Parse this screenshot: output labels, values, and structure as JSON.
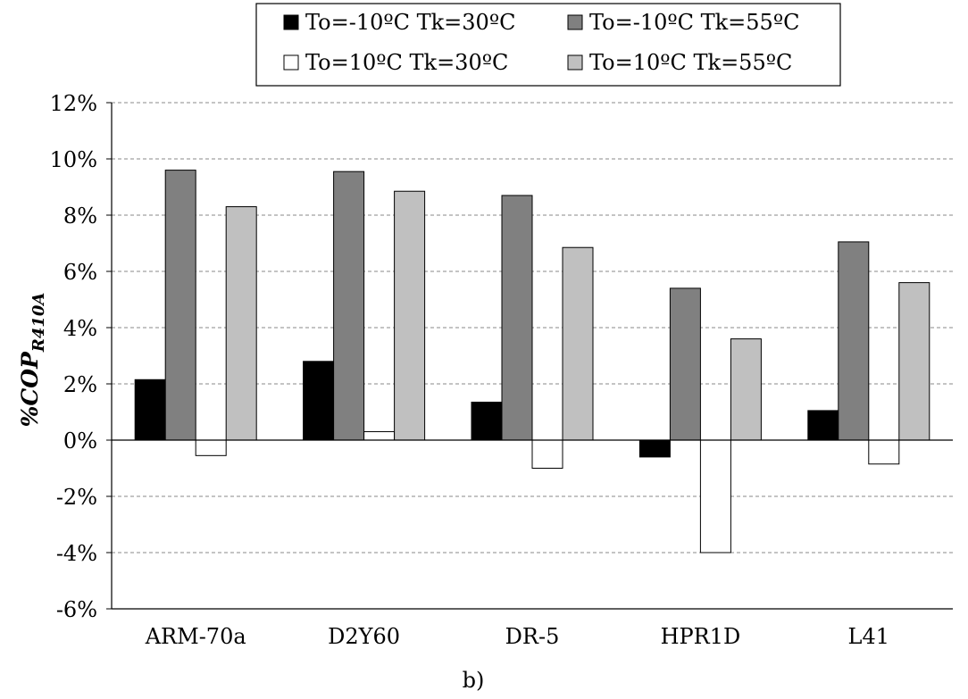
{
  "chart_data": {
    "type": "bar",
    "caption": "b)",
    "ylabel": {
      "main": "%COP",
      "subscript": "R410A"
    },
    "categories": [
      "ARM-70a",
      "D2Y60",
      "DR-5",
      "HPR1D",
      "L41"
    ],
    "ylim": [
      -6,
      12
    ],
    "yticks": [
      -6,
      -4,
      -2,
      0,
      2,
      4,
      6,
      8,
      10,
      12
    ],
    "ytick_labels": [
      "-6%",
      "-4%",
      "-2%",
      "0%",
      "2%",
      "4%",
      "6%",
      "8%",
      "10%",
      "12%"
    ],
    "grid": true,
    "legend_placement": "top",
    "series": [
      {
        "name": "To=-10ºC Tk=30ºC",
        "color": "#000000",
        "values": [
          2.15,
          2.8,
          1.35,
          -0.6,
          1.05
        ]
      },
      {
        "name": "To=-10ºC Tk=55ºC",
        "color": "#808080",
        "values": [
          9.6,
          9.55,
          8.7,
          5.4,
          7.05
        ]
      },
      {
        "name": "To=10ºC Tk=30ºC",
        "color": "#ffffff",
        "values": [
          -0.55,
          0.3,
          -1.0,
          -4.0,
          -0.85
        ]
      },
      {
        "name": "To=10ºC Tk=55ºC",
        "color": "#c0c0c0",
        "values": [
          8.3,
          8.85,
          6.85,
          3.6,
          5.6
        ]
      }
    ]
  }
}
